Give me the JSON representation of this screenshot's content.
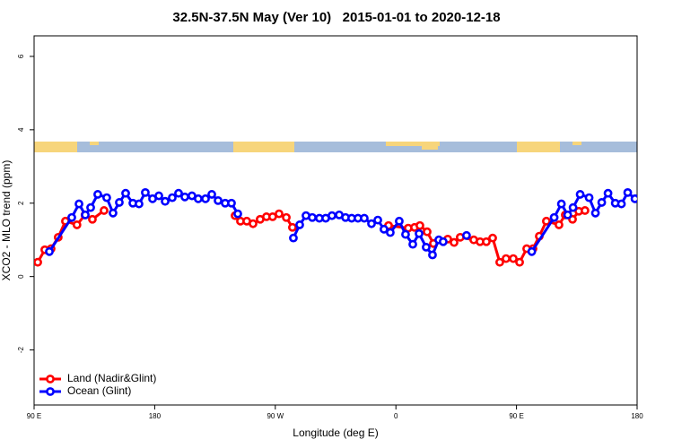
{
  "chart_data": {
    "type": "line",
    "title": "32.5N-37.5N May (Ver 10)   2015-01-01 to 2020-12-18",
    "xlabel": "Longitude (deg E)",
    "ylabel": "XCO2 - MLO trend (ppm)",
    "xlim": [
      90,
      540
    ],
    "ylim": [
      -3.5,
      6.56
    ],
    "xticks": [
      {
        "value": 90,
        "label": "90 E"
      },
      180,
      {
        "value": 270,
        "label": "90 W"
      },
      {
        "value": 360,
        "label": "0"
      },
      {
        "value": 450,
        "label": "90 E"
      },
      {
        "value": 540,
        "label": "180"
      }
    ],
    "yticks": [
      -2,
      0,
      2,
      4,
      6
    ],
    "legend": "bottom-left",
    "series": [
      {
        "name": "Land (Nadir&Glint)",
        "color": "#ff0000",
        "x": [
          92.7,
          98,
          102.7,
          108,
          113.4,
          122,
          128,
          133.5,
          142.2,
          190,
          240,
          244,
          248.7,
          253.4,
          258.7,
          263.4,
          268,
          272.8,
          278.2,
          282.8,
          320,
          354.5,
          369.2,
          373.9,
          377.9,
          383.3,
          388,
          398.7,
          403.4,
          408,
          418.1,
          422.8,
          427.5,
          432.2,
          437.5,
          442.2,
          447.6,
          452.3,
          457.6,
          462.3,
          467,
          472.3,
          481.7,
          486.4,
          491.8,
          496.5,
          501.1
        ],
        "values": [
          0.39,
          0.73,
          0.76,
          1.07,
          1.51,
          1.41,
          1.68,
          1.56,
          1.8,
          null,
          1.66,
          1.51,
          1.51,
          1.44,
          1.56,
          1.63,
          1.63,
          1.71,
          1.61,
          1.34,
          null,
          1.39,
          1.32,
          1.34,
          1.39,
          1.22,
          0.9,
          1.02,
          0.93,
          1.07,
          1.0,
          0.95,
          0.95,
          1.05,
          0.39,
          0.49,
          0.49,
          0.39,
          0.76,
          0.76,
          1.1,
          1.51,
          1.41,
          1.68,
          1.56,
          1.78,
          1.8
        ]
      },
      {
        "name": "Ocean (Glint)",
        "color": "#0000ff",
        "x": [
          101.4,
          118.1,
          123.5,
          128.2,
          132.2,
          137.5,
          144.2,
          148.9,
          153.6,
          158.3,
          163.7,
          168.3,
          173,
          178.4,
          183.1,
          187.8,
          193.1,
          197.8,
          202.5,
          207.8,
          212.5,
          217.9,
          222.6,
          227.3,
          232.6,
          237.3,
          242,
          262,
          283.5,
          288.2,
          292.9,
          297.6,
          302.9,
          307.6,
          312.3,
          317.7,
          322.4,
          327,
          331.7,
          336.4,
          341.8,
          346.5,
          351.1,
          355.8,
          362.5,
          367.2,
          372.6,
          377.3,
          382.6,
          387.3,
          392,
          395.3,
          404,
          412.7,
          440,
          461.4,
          478.1,
          483.5,
          488.2,
          492.2,
          497.5,
          504.2,
          508.9,
          513.6,
          518.3,
          523.7,
          528.3,
          533,
          538.4
        ],
        "values": [
          0.68,
          1.61,
          1.98,
          1.68,
          1.88,
          2.24,
          2.15,
          1.73,
          2.02,
          2.27,
          2.0,
          1.98,
          2.29,
          2.12,
          2.2,
          2.05,
          2.15,
          2.27,
          2.17,
          2.2,
          2.12,
          2.12,
          2.24,
          2.07,
          2.0,
          2.0,
          1.71,
          null,
          1.05,
          1.41,
          1.66,
          1.61,
          1.59,
          1.59,
          1.66,
          1.68,
          1.61,
          1.59,
          1.59,
          1.59,
          1.44,
          1.54,
          1.29,
          1.2,
          1.51,
          1.15,
          0.88,
          1.17,
          0.8,
          0.59,
          1.0,
          0.95,
          null,
          1.12,
          null,
          0.68,
          1.61,
          1.98,
          1.68,
          1.88,
          2.24,
          2.15,
          1.73,
          2.02,
          2.27,
          2.0,
          1.98,
          2.29,
          2.12
        ]
      }
    ]
  }
}
